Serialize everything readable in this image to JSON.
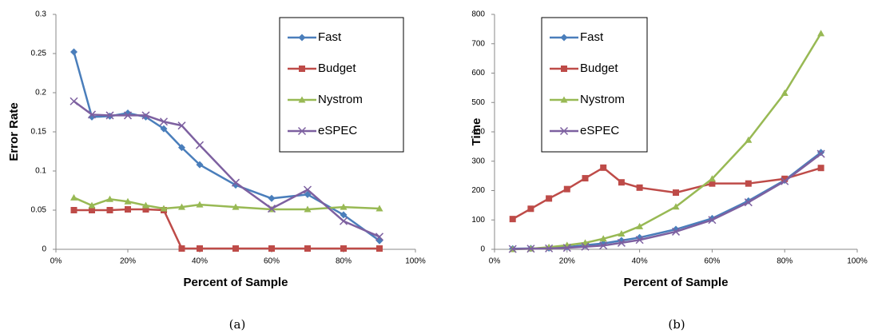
{
  "chart_data": [
    {
      "type": "line",
      "caption": "(a)",
      "x_label": "Percent of Sample",
      "y_label": "Error Rate",
      "x": [
        5,
        10,
        15,
        20,
        25,
        30,
        35,
        40,
        50,
        60,
        70,
        80,
        90
      ],
      "xlim": [
        0,
        100
      ],
      "xticks": [
        {
          "value": 0,
          "label": "0%"
        },
        {
          "value": 20,
          "label": "20%"
        },
        {
          "value": 40,
          "label": "40%"
        },
        {
          "value": 60,
          "label": "60%"
        },
        {
          "value": 80,
          "label": "80%"
        },
        {
          "value": 100,
          "label": "100%"
        }
      ],
      "ylim": [
        0,
        0.3
      ],
      "yticks": [
        0,
        0.05,
        0.1,
        0.15,
        0.2,
        0.25,
        0.3
      ],
      "legend": "upper right",
      "series": [
        {
          "name": "Fast",
          "color": "#4a7ebb",
          "marker": "diamond",
          "values": [
            0.252,
            0.169,
            0.17,
            0.174,
            0.169,
            0.154,
            0.13,
            0.108,
            0.082,
            0.065,
            0.07,
            0.044,
            0.011
          ]
        },
        {
          "name": "Budget",
          "color": "#be4b48",
          "marker": "square",
          "values": [
            0.05,
            0.05,
            0.05,
            0.051,
            0.051,
            0.05,
            0.001,
            0.001,
            0.001,
            0.001,
            0.001,
            0.001,
            0.001
          ]
        },
        {
          "name": "Nystrom",
          "color": "#98b954",
          "marker": "triangle",
          "values": [
            0.066,
            0.056,
            0.064,
            0.061,
            0.056,
            0.052,
            0.054,
            0.057,
            0.054,
            0.051,
            0.051,
            0.054,
            0.052
          ]
        },
        {
          "name": "eSPEC",
          "color": "#7d60a0",
          "marker": "x",
          "values": [
            0.189,
            0.172,
            0.171,
            0.171,
            0.171,
            0.163,
            0.158,
            0.133,
            0.085,
            0.052,
            0.076,
            0.036,
            0.016
          ]
        }
      ]
    },
    {
      "type": "line",
      "caption": "(b)",
      "x_label": "Percent of Sample",
      "y_label": "Time",
      "x": [
        5,
        10,
        15,
        20,
        25,
        30,
        35,
        40,
        50,
        60,
        70,
        80,
        90
      ],
      "xlim": [
        0,
        100
      ],
      "xticks": [
        {
          "value": 0,
          "label": "0%"
        },
        {
          "value": 20,
          "label": "20%"
        },
        {
          "value": 40,
          "label": "40%"
        },
        {
          "value": 60,
          "label": "60%"
        },
        {
          "value": 80,
          "label": "80%"
        },
        {
          "value": 100,
          "label": "100%"
        }
      ],
      "ylim": [
        0,
        800
      ],
      "yticks": [
        0,
        100,
        200,
        300,
        400,
        500,
        600,
        700,
        800
      ],
      "legend": "upper left",
      "series": [
        {
          "name": "Fast",
          "color": "#4a7ebb",
          "marker": "diamond",
          "values": [
            2,
            3,
            4,
            8,
            14,
            20,
            30,
            40,
            68,
            105,
            165,
            235,
            330
          ]
        },
        {
          "name": "Budget",
          "color": "#be4b48",
          "marker": "square",
          "values": [
            103,
            138,
            173,
            205,
            242,
            278,
            228,
            210,
            193,
            224,
            224,
            240,
            277
          ]
        },
        {
          "name": "Nystrom",
          "color": "#98b954",
          "marker": "triangle",
          "values": [
            0,
            2,
            7,
            14,
            22,
            36,
            53,
            78,
            145,
            240,
            372,
            532,
            735
          ]
        },
        {
          "name": "eSPEC",
          "color": "#7d60a0",
          "marker": "x",
          "values": [
            1,
            2,
            3,
            5,
            9,
            13,
            22,
            32,
            60,
            100,
            160,
            232,
            325
          ]
        }
      ]
    }
  ]
}
